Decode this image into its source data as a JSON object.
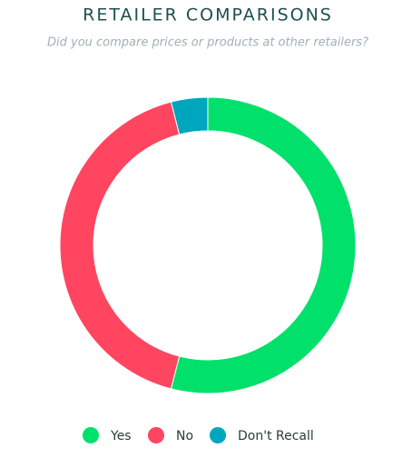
{
  "chart_data": {
    "type": "donut",
    "title": "RETAILER COMPARISONS",
    "subtitle": "Did you compare prices or products at other retailers?",
    "categories": [
      "Yes",
      "No",
      "Don't Recall"
    ],
    "values": [
      54,
      42,
      4
    ],
    "colors": [
      "#00e06b",
      "#ff4560",
      "#00a6be"
    ]
  }
}
